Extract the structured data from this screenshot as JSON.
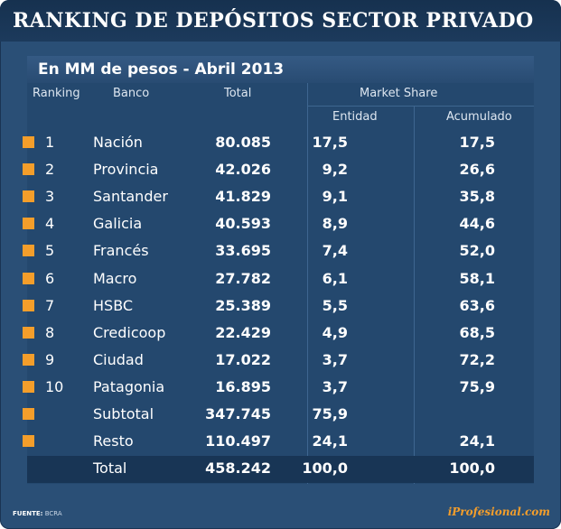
{
  "title": "RANKING DE DEPÓSITOS  SECTOR PRIVADO",
  "subtitle": "En MM de pesos - Abril 2013",
  "headers": {
    "ranking": "Ranking",
    "banco": "Banco",
    "total": "Total",
    "market_share": "Market Share",
    "entidad": "Entidad",
    "acumulado": "Acumulado"
  },
  "chart_data": {
    "type": "table",
    "title": "RANKING DE DEPÓSITOS  SECTOR PRIVADO",
    "subtitle": "En MM de pesos - Abril 2013",
    "columns": [
      "Ranking",
      "Banco",
      "Total",
      "Market Share Entidad",
      "Market Share Acumulado"
    ],
    "rows": [
      {
        "rank": "1",
        "bank": "Nación",
        "total": "80.085",
        "entidad": "17,5",
        "acumulado": "17,5"
      },
      {
        "rank": "2",
        "bank": "Provincia",
        "total": "42.026",
        "entidad": "9,2",
        "acumulado": "26,6"
      },
      {
        "rank": "3",
        "bank": "Santander",
        "total": "41.829",
        "entidad": "9,1",
        "acumulado": "35,8"
      },
      {
        "rank": "4",
        "bank": "Galicia",
        "total": "40.593",
        "entidad": "8,9",
        "acumulado": "44,6"
      },
      {
        "rank": "5",
        "bank": "Francés",
        "total": "33.695",
        "entidad": "7,4",
        "acumulado": "52,0"
      },
      {
        "rank": "6",
        "bank": "Macro",
        "total": "27.782",
        "entidad": "6,1",
        "acumulado": "58,1"
      },
      {
        "rank": "7",
        "bank": "HSBC",
        "total": "25.389",
        "entidad": "5,5",
        "acumulado": "63,6"
      },
      {
        "rank": "8",
        "bank": "Credicoop",
        "total": "22.429",
        "entidad": "4,9",
        "acumulado": "68,5"
      },
      {
        "rank": "9",
        "bank": "Ciudad",
        "total": "17.022",
        "entidad": "3,7",
        "acumulado": "72,2"
      },
      {
        "rank": "10",
        "bank": "Patagonia",
        "total": "16.895",
        "entidad": "3,7",
        "acumulado": "75,9"
      },
      {
        "rank": "",
        "bank": "Subtotal",
        "total": "347.745",
        "entidad": "75,9",
        "acumulado": ""
      },
      {
        "rank": "",
        "bank": "Resto",
        "total": "110.497",
        "entidad": "24,1",
        "acumulado": "24,1"
      }
    ],
    "total_row": {
      "rank": "",
      "bank": "Total",
      "total": "458.242",
      "entidad": "100,0",
      "acumulado": "100,0"
    }
  },
  "footer": {
    "source_label": "FUENTE:",
    "source_value": "BCRA",
    "brand": "iProfesional.com"
  },
  "colors": {
    "background": "#2a4f76",
    "title_bar": "#16314f",
    "marker": "#f49e2b",
    "brand": "#f49e2b"
  }
}
